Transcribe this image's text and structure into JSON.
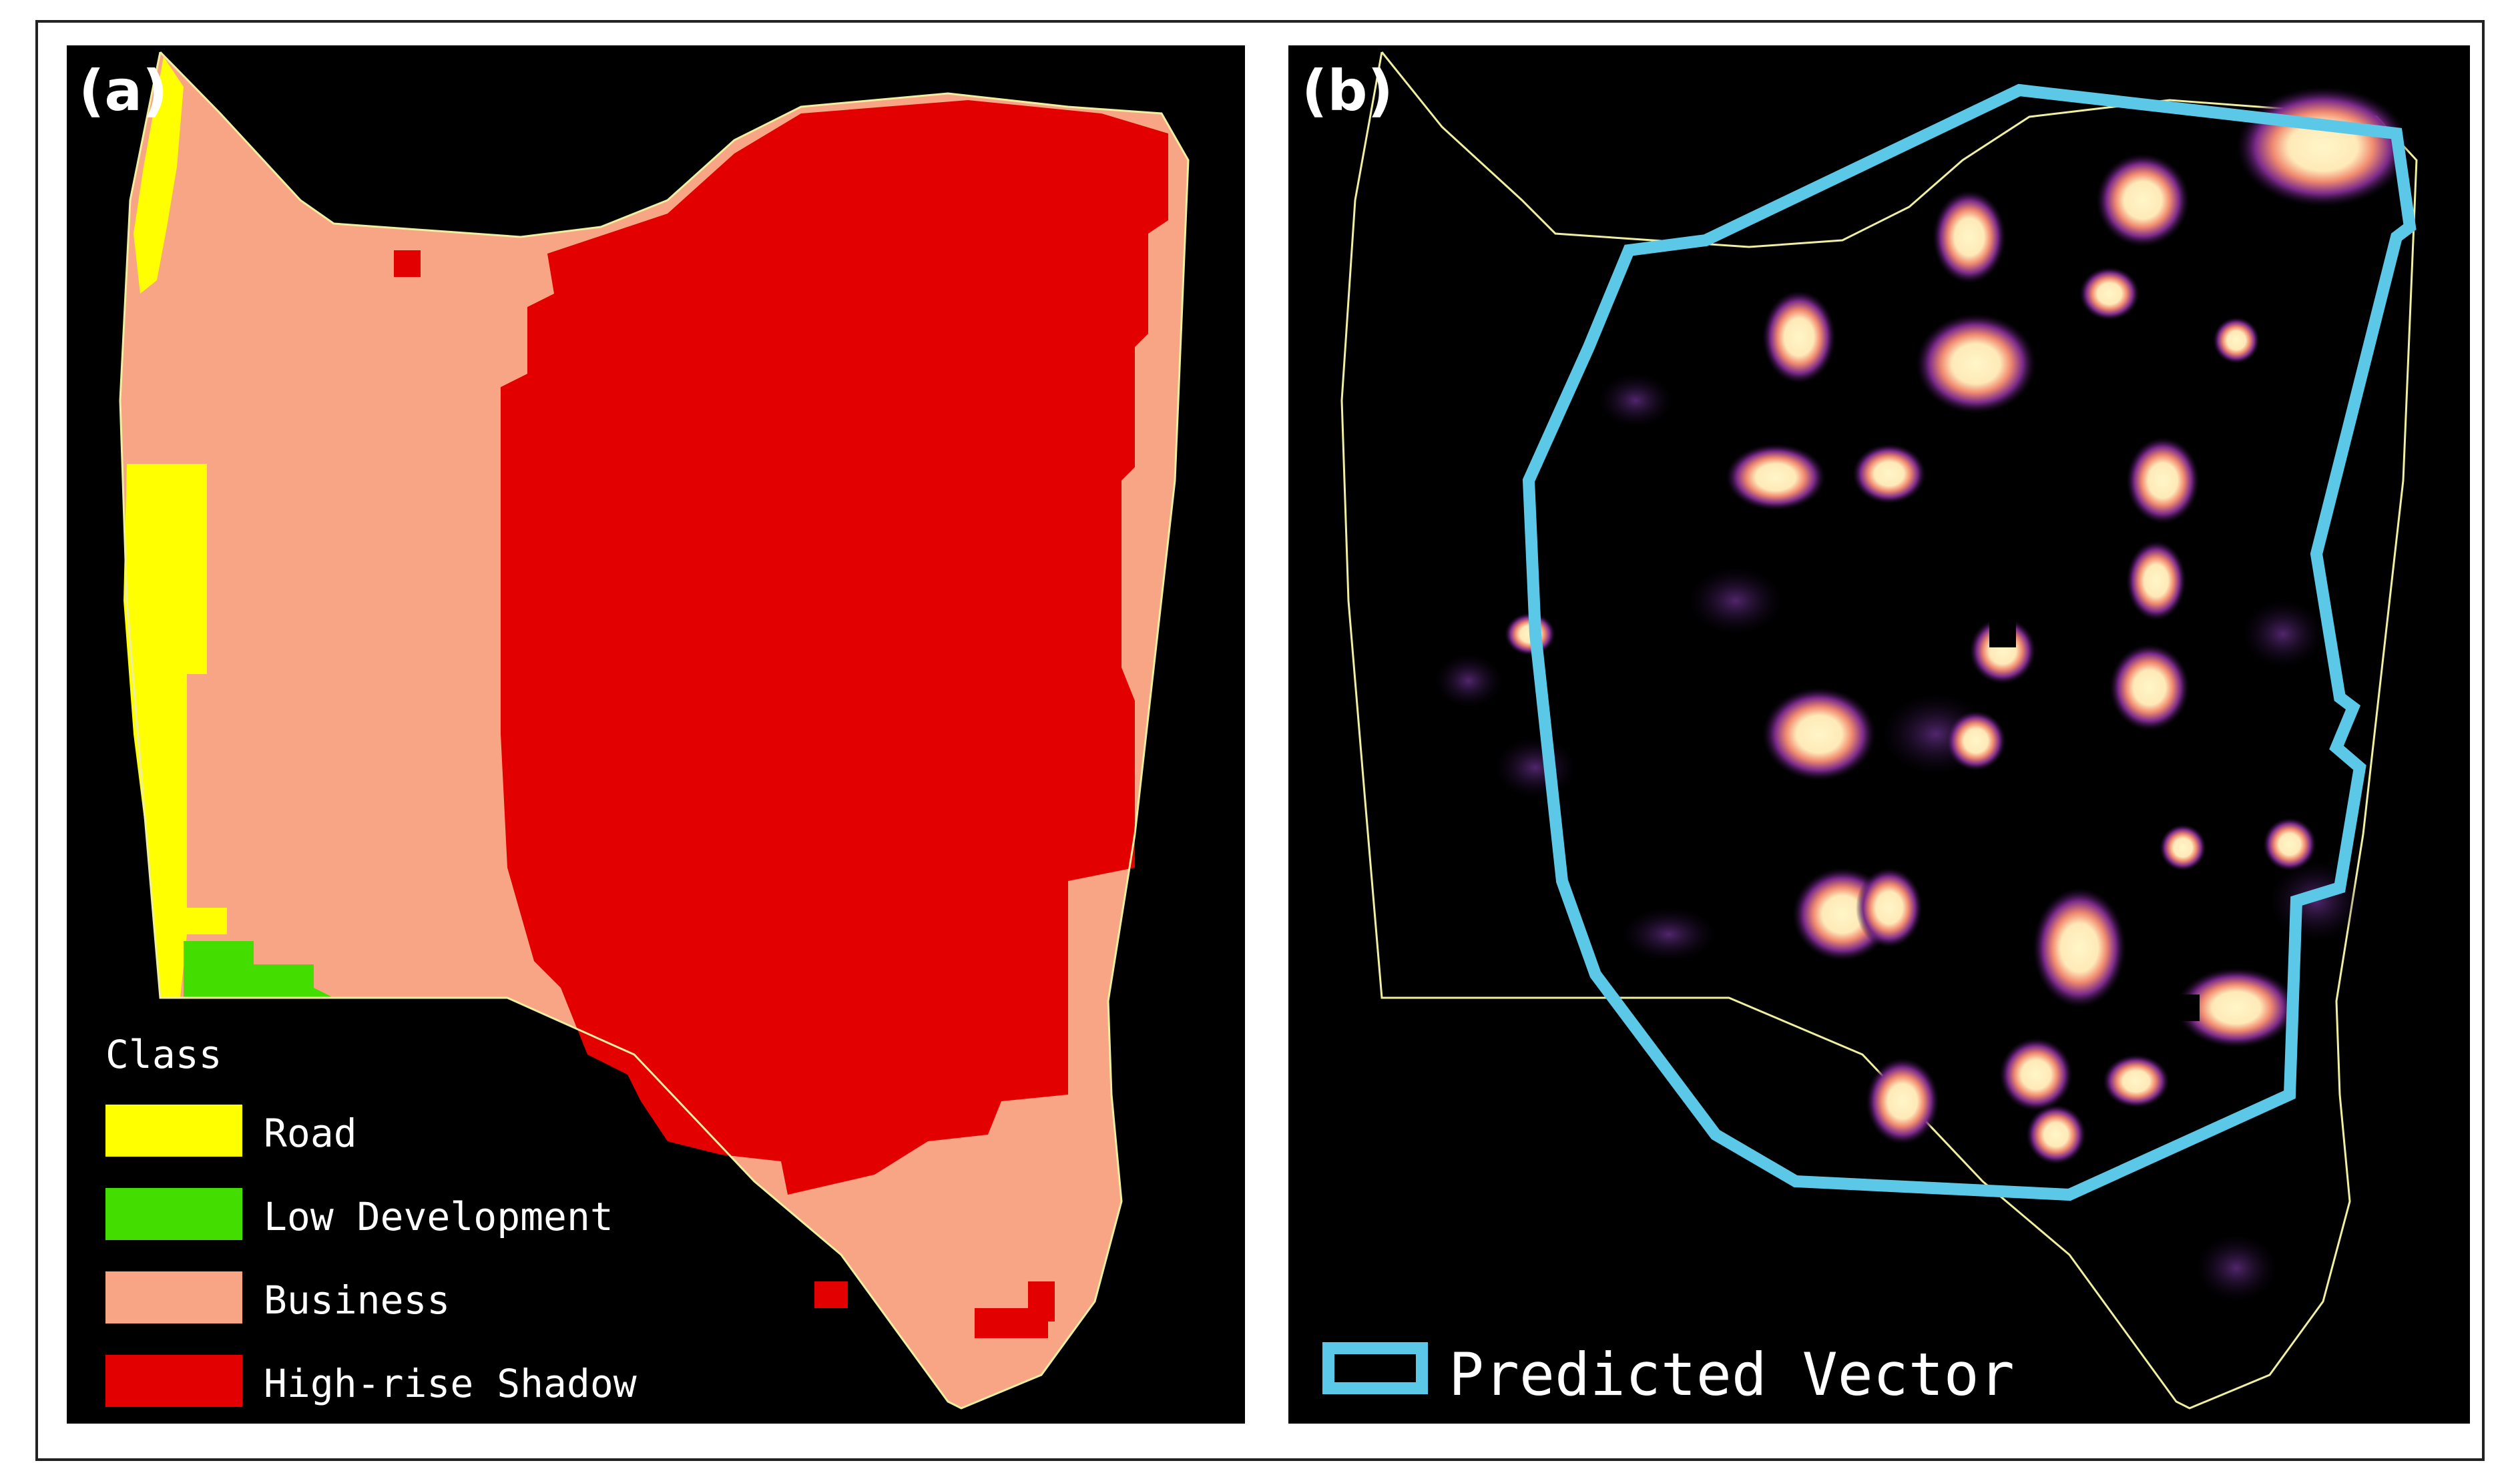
{
  "panels": {
    "a": {
      "label": "(a)",
      "legend": {
        "title": "Class",
        "items": [
          {
            "label": "Road",
            "color": "#ffff00"
          },
          {
            "label": "Low Development",
            "color": "#44dd00"
          },
          {
            "label": "Business",
            "color": "#f7a584"
          },
          {
            "label": "High-rise Shadow",
            "color": "#e30000"
          }
        ]
      }
    },
    "b": {
      "label": "(b)",
      "legend": {
        "label": "Predicted Vector",
        "color": "#5bc8e8"
      }
    }
  },
  "colors": {
    "background": "#000000",
    "outline": "#f0eea0",
    "hotspot_core": "#fff4c0",
    "hotspot_glow": "#6a2a8a"
  }
}
